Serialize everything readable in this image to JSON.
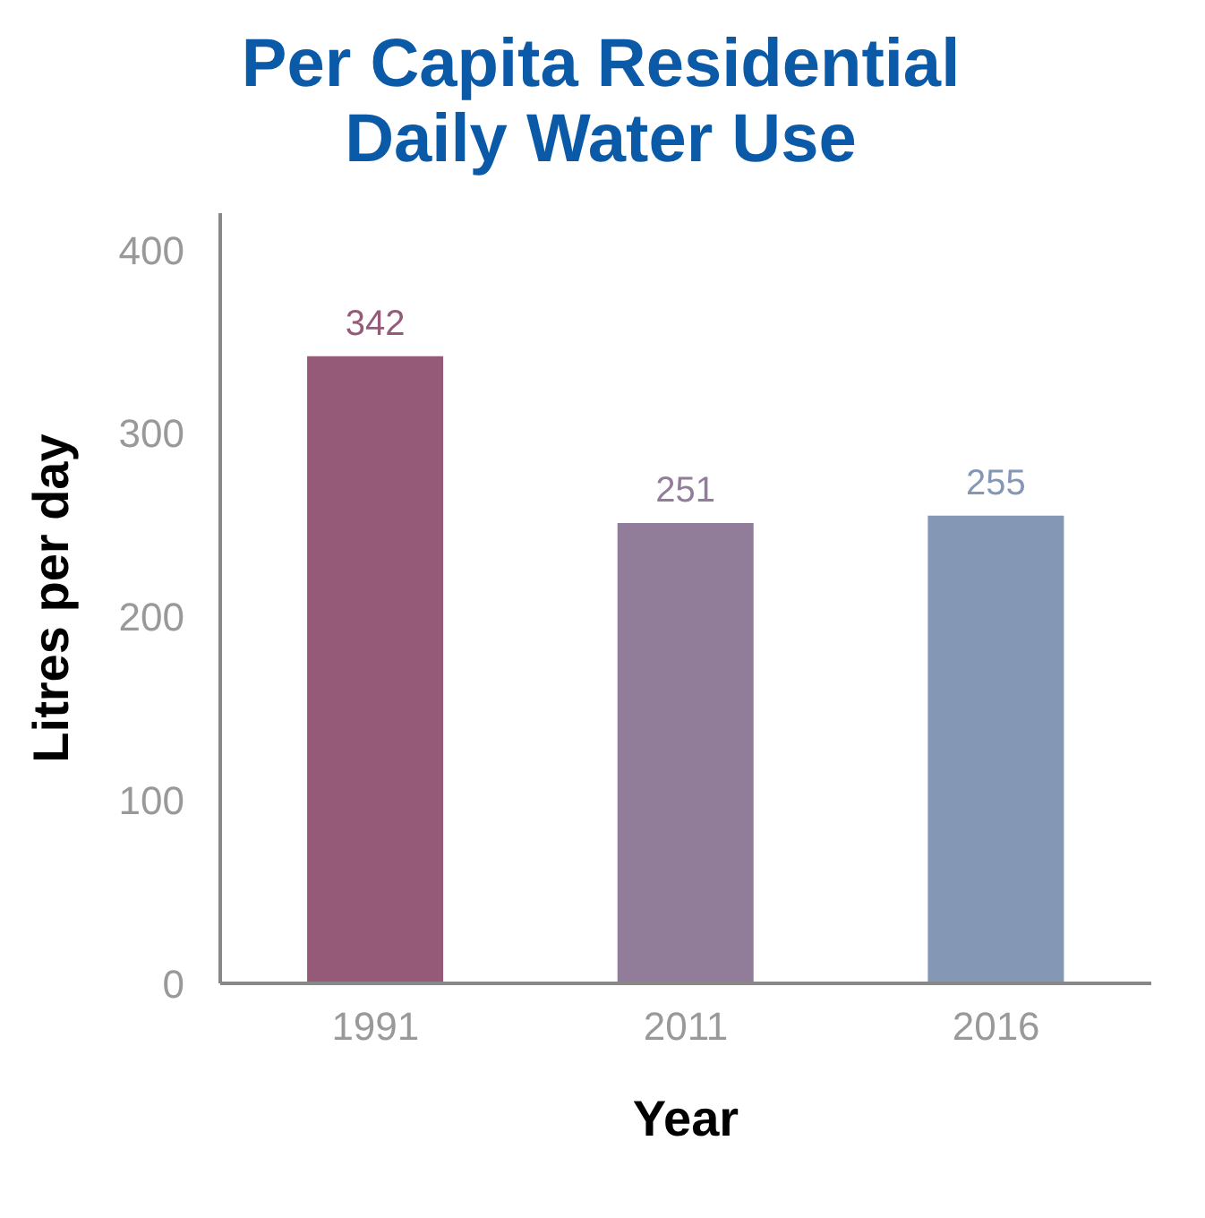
{
  "chart_data": {
    "type": "bar",
    "title": "Per Capita Residential Daily Water Use",
    "xlabel": "Year",
    "ylabel": "Litres per day",
    "categories": [
      "1991",
      "2011",
      "2016"
    ],
    "values": [
      342,
      251,
      255
    ],
    "colors": [
      "#945a78",
      "#917d9a",
      "#8497b5"
    ],
    "ylim": [
      0,
      420
    ],
    "yticks": [
      0,
      100,
      200,
      300,
      400
    ],
    "data_labels": true,
    "grid": false
  }
}
